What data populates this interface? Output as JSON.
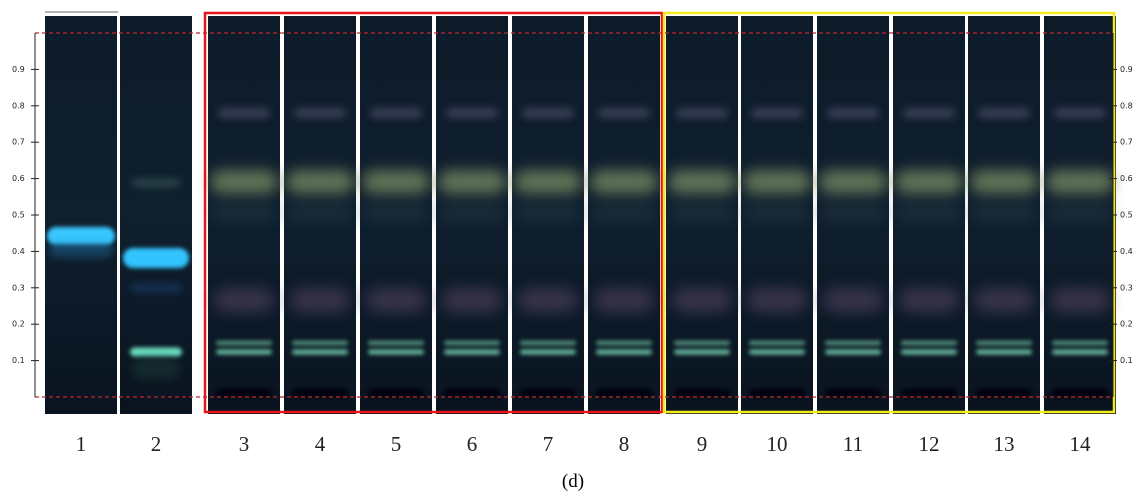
{
  "rf_axis": {
    "ylim": [
      0,
      1
    ],
    "ticks": [
      0.1,
      0.2,
      0.3,
      0.4,
      0.5,
      0.6,
      0.7,
      0.8,
      0.9
    ]
  },
  "lanes": [
    "1",
    "2",
    "3",
    "4",
    "5",
    "6",
    "7",
    "8",
    "9",
    "10",
    "11",
    "12",
    "13",
    "14"
  ],
  "caption": "(d)"
}
